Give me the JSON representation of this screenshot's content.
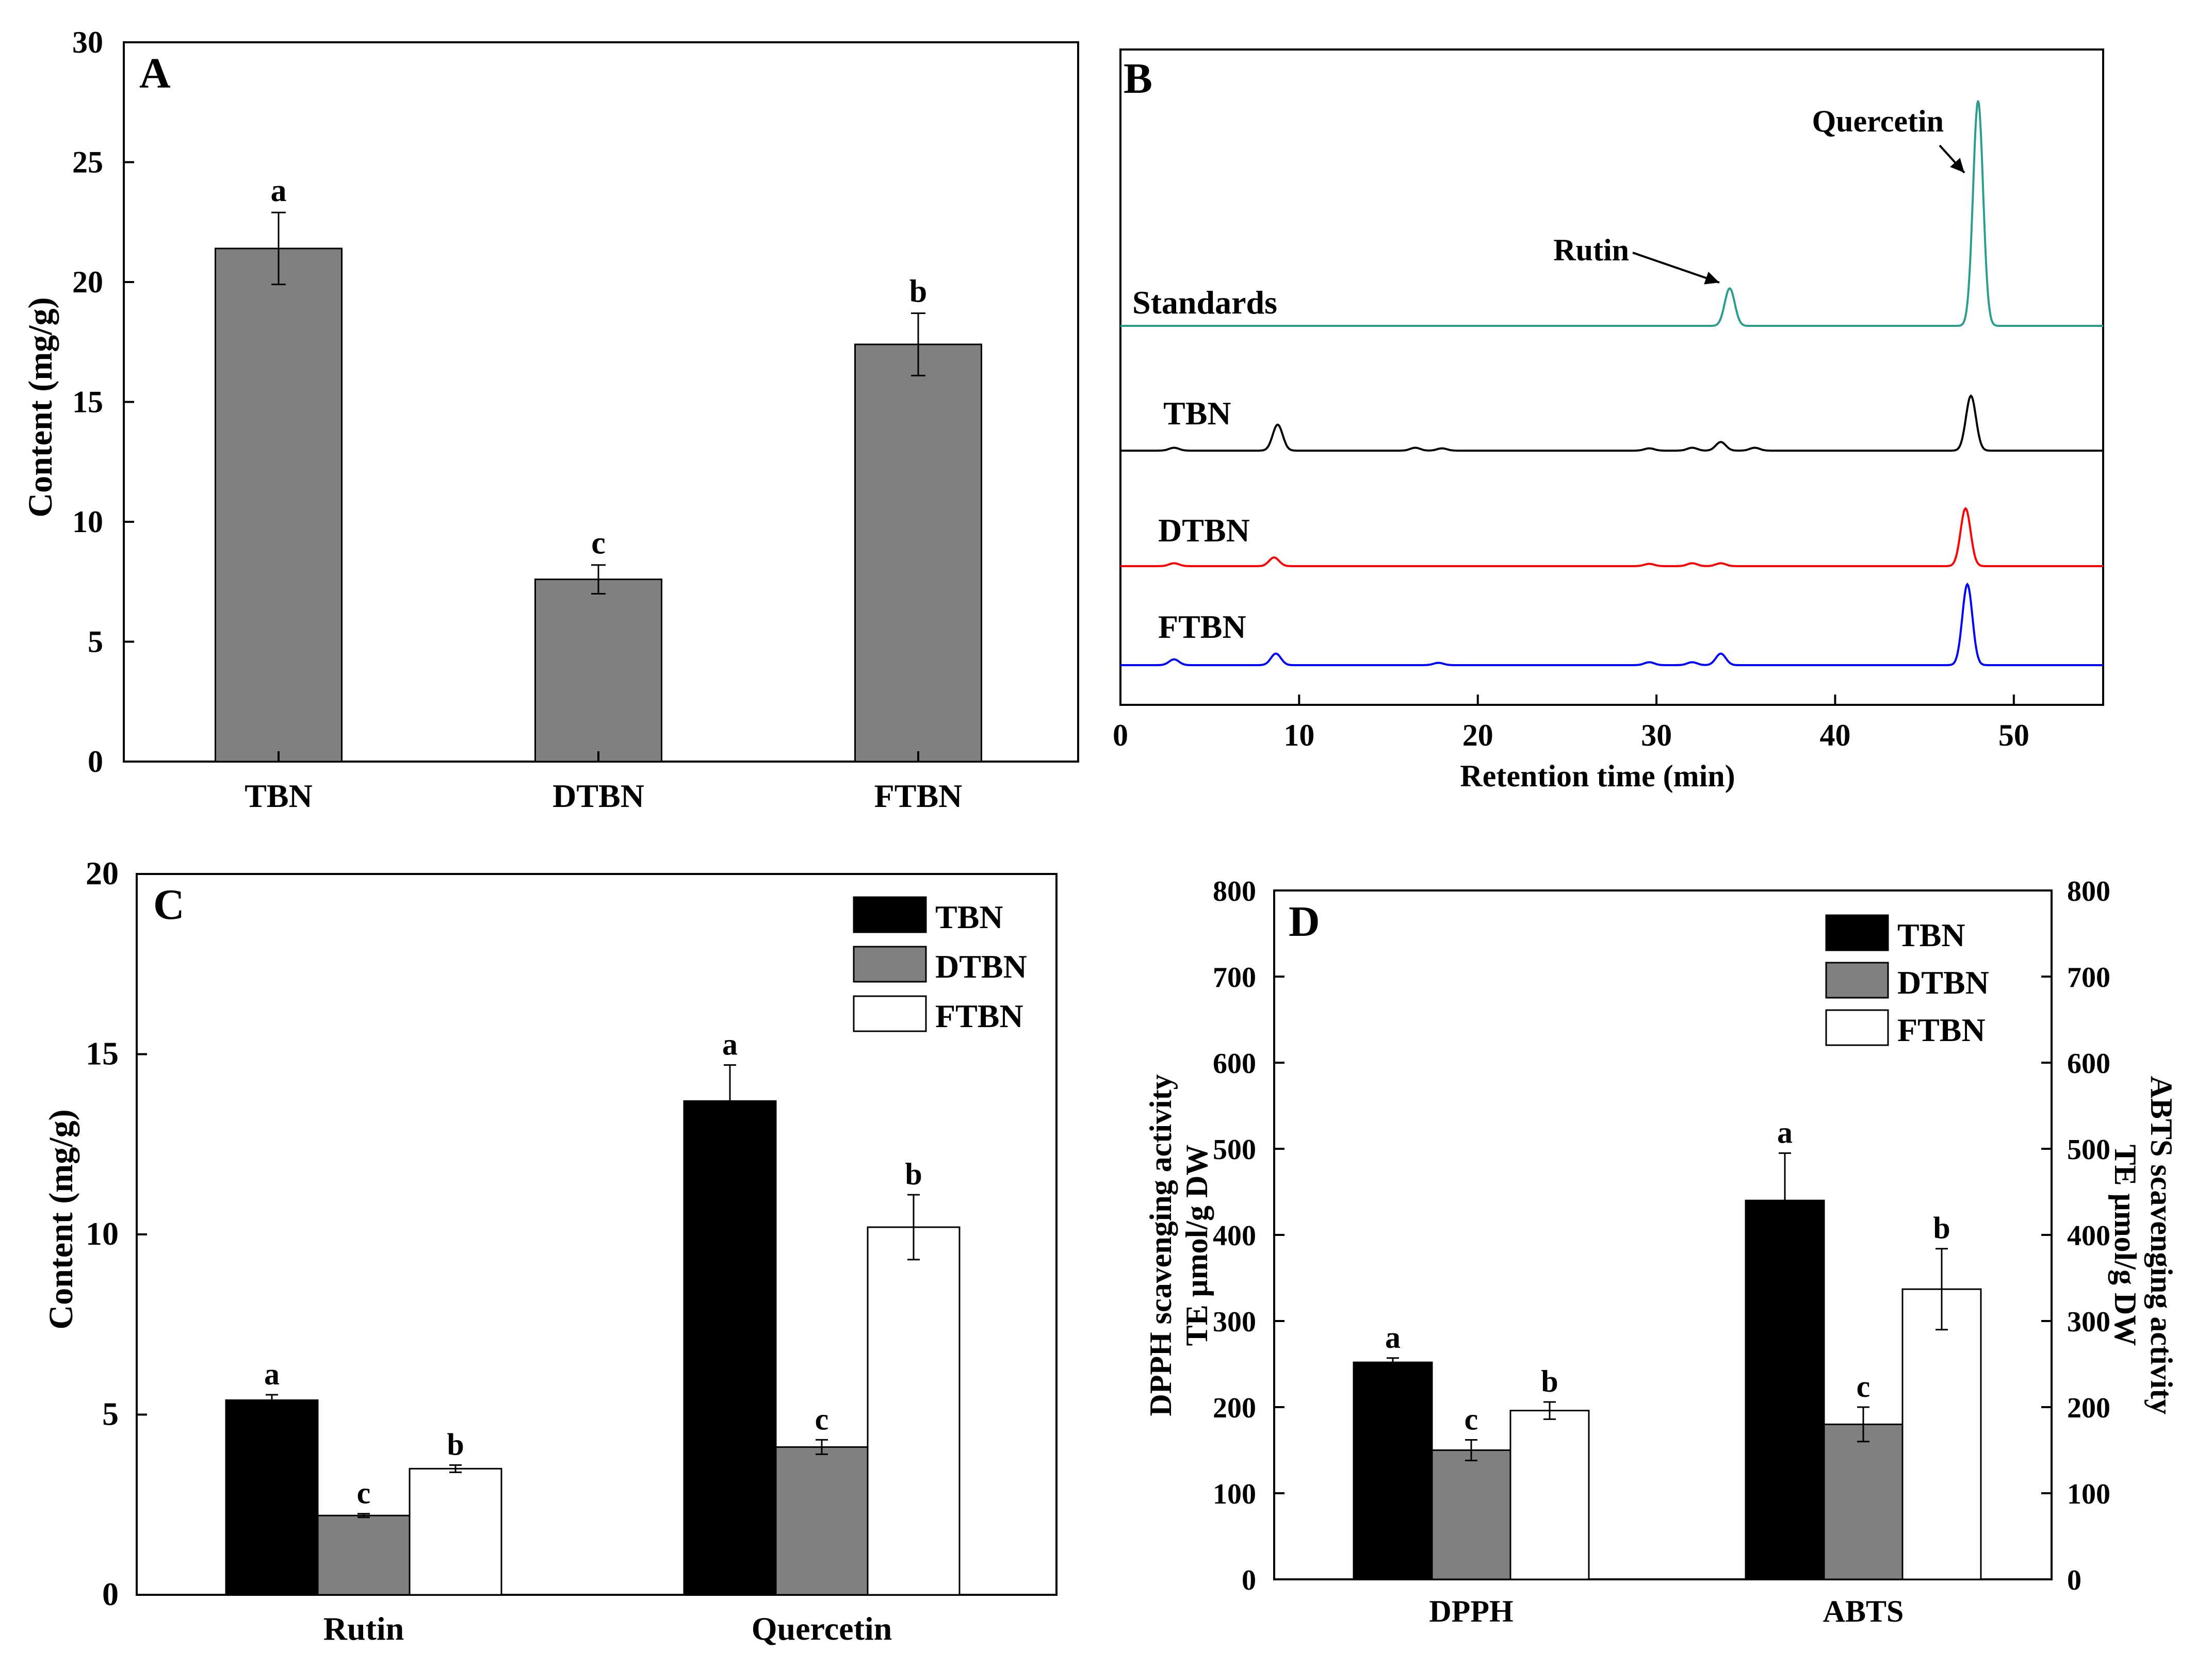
{
  "chart_data": [
    {
      "panel": "A",
      "type": "bar",
      "categories": [
        "TBN",
        "DTBN",
        "FTBN"
      ],
      "values": [
        21.4,
        7.6,
        17.4
      ],
      "errors": [
        1.5,
        0.6,
        1.3
      ],
      "letters": [
        "a",
        "c",
        "b"
      ],
      "ylabel": "Content (mg/g)",
      "ylim": [
        0,
        30
      ],
      "yticks": [
        0,
        5,
        10,
        15,
        20,
        25,
        30
      ],
      "bar_color": "#808080"
    },
    {
      "panel": "B",
      "type": "line",
      "xlabel": "Retention time (min)",
      "xlim": [
        0,
        55
      ],
      "xticks": [
        0,
        10,
        20,
        30,
        40,
        50
      ],
      "series": [
        {
          "name": "Standards",
          "color": "#2a9d8f",
          "peaks": [
            [
              34.1,
              0.13
            ],
            [
              48.0,
              0.78
            ]
          ]
        },
        {
          "name": "TBN",
          "color": "#000000",
          "peaks": [
            [
              3.0,
              0.01
            ],
            [
              8.8,
              0.09
            ],
            [
              16.5,
              0.01
            ],
            [
              18.0,
              0.008
            ],
            [
              29.6,
              0.008
            ],
            [
              32.0,
              0.01
            ],
            [
              33.6,
              0.03
            ],
            [
              35.5,
              0.01
            ],
            [
              47.6,
              0.19
            ]
          ]
        },
        {
          "name": "DTBN",
          "color": "#ff0000",
          "peaks": [
            [
              3.0,
              0.01
            ],
            [
              8.6,
              0.03
            ],
            [
              29.6,
              0.008
            ],
            [
              32.0,
              0.01
            ],
            [
              33.6,
              0.01
            ],
            [
              47.3,
              0.2
            ]
          ]
        },
        {
          "name": "FTBN",
          "color": "#0000ff",
          "peaks": [
            [
              3.0,
              0.02
            ],
            [
              8.7,
              0.04
            ],
            [
              17.8,
              0.008
            ],
            [
              29.6,
              0.01
            ],
            [
              32.0,
              0.01
            ],
            [
              33.6,
              0.04
            ],
            [
              47.4,
              0.28
            ]
          ]
        }
      ],
      "annotations": [
        "Rutin",
        "Quercetin"
      ]
    },
    {
      "panel": "C",
      "type": "bar",
      "categories": [
        "Rutin",
        "Quercetin"
      ],
      "series": [
        {
          "name": "TBN",
          "color": "#000000",
          "values": [
            5.4,
            13.7
          ],
          "errors": [
            0.15,
            1.0
          ],
          "letters": [
            "a",
            "a"
          ]
        },
        {
          "name": "DTBN",
          "color": "#808080",
          "values": [
            2.2,
            4.1
          ],
          "errors": [
            0.05,
            0.2
          ],
          "letters": [
            "c",
            "c"
          ]
        },
        {
          "name": "FTBN",
          "color": "#ffffff",
          "values": [
            3.5,
            10.2
          ],
          "errors": [
            0.1,
            0.9
          ],
          "letters": [
            "b",
            "b"
          ]
        }
      ],
      "ylabel": "Content (mg/g)",
      "ylim": [
        0,
        20
      ],
      "yticks": [
        0,
        5,
        10,
        15,
        20
      ]
    },
    {
      "panel": "D",
      "type": "bar",
      "categories": [
        "DPPH",
        "ABTS"
      ],
      "series": [
        {
          "name": "TBN",
          "color": "#000000",
          "values": [
            252,
            440
          ],
          "errors": [
            5,
            55
          ],
          "letters": [
            "a",
            "a"
          ]
        },
        {
          "name": "DTBN",
          "color": "#808080",
          "values": [
            150,
            180
          ],
          "errors": [
            12,
            20
          ],
          "letters": [
            "c",
            "c"
          ]
        },
        {
          "name": "FTBN",
          "color": "#ffffff",
          "values": [
            196,
            337
          ],
          "errors": [
            10,
            47
          ],
          "letters": [
            "b",
            "b"
          ]
        }
      ],
      "ylabel_left": [
        "DPPH scavenging activity",
        "TE μmol/g DW"
      ],
      "ylabel_right": [
        "ABTS scavenging activity",
        "TE μmol/g DW"
      ],
      "ylim": [
        0,
        800
      ],
      "yticks": [
        0,
        100,
        200,
        300,
        400,
        500,
        600,
        700,
        800
      ]
    }
  ]
}
